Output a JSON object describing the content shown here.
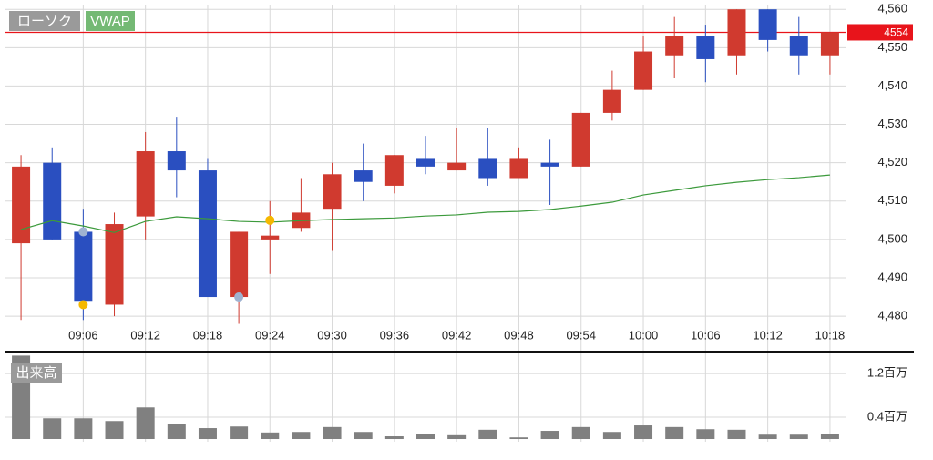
{
  "chart_data": [
    {
      "type": "candlestick",
      "categories": [
        null,
        null,
        "09:06",
        null,
        "09:12",
        null,
        "09:18",
        null,
        "09:24",
        null,
        "09:30",
        null,
        "09:36",
        null,
        "09:42",
        null,
        "09:48",
        null,
        "09:54",
        null,
        "10:00",
        null,
        "10:06",
        null,
        "10:12",
        null,
        "10:18"
      ],
      "series": [
        {
          "name": "ローソク",
          "up_color": "#d03a2f",
          "down_color": "#2a4fc0",
          "open": [
            4499,
            4520,
            4502,
            4483,
            4506,
            4523,
            4518,
            4485,
            4500,
            4503,
            4508,
            4518,
            4514,
            4521,
            4518,
            4521,
            4516,
            4520,
            4519,
            4533,
            4539,
            4548,
            4553,
            4548,
            4560,
            4553,
            4548
          ],
          "high": [
            4522,
            4524,
            4508,
            4507,
            4528,
            4532,
            4521,
            4502,
            4510,
            4516,
            4520,
            4525,
            4522,
            4527,
            4529,
            4529,
            4524,
            4526,
            4533,
            4544,
            4553,
            4558,
            4556,
            4560,
            4560,
            4558,
            4554
          ],
          "low": [
            4479,
            4500,
            4479,
            4480,
            4500,
            4511,
            4485,
            4478,
            4491,
            4502,
            4497,
            4510,
            4512,
            4517,
            4518,
            4514,
            4516,
            4509,
            4519,
            4531,
            4539,
            4542,
            4541,
            4543,
            4549,
            4543,
            4543
          ],
          "close": [
            4519,
            4500,
            4484,
            4504,
            4523,
            4518,
            4485,
            4502,
            4501,
            4507,
            4517,
            4515,
            4522,
            4519,
            4520,
            4516,
            4521,
            4519,
            4533,
            4539,
            4549,
            4553,
            4547,
            4560,
            4552,
            4548,
            4554
          ]
        }
      ],
      "line": {
        "name": "VWAP",
        "color": "#3c9a3c",
        "values": [
          4502.6,
          4504.9,
          4503.5,
          4501.8,
          4504.7,
          4505.9,
          4505.4,
          4504.7,
          4504.5,
          4504.9,
          4505.2,
          4505.4,
          4505.6,
          4506.1,
          4506.4,
          4507.1,
          4507.3,
          4507.8,
          4508.7,
          4509.7,
          4511.6,
          4512.8,
          4514.0,
          4514.9,
          4515.6,
          4516.1,
          4516.8
        ]
      },
      "markers": [
        {
          "color": "#f5b800",
          "values": [
            null,
            null,
            4483,
            null,
            null,
            null,
            null,
            null,
            4505,
            null,
            null,
            null,
            null,
            null,
            null,
            null,
            null,
            null,
            null,
            null,
            null,
            null,
            null,
            null,
            null,
            null,
            null
          ]
        },
        {
          "color": "#9fb3d1",
          "values": [
            null,
            null,
            4502,
            null,
            null,
            null,
            null,
            4485,
            null,
            null,
            null,
            null,
            null,
            null,
            null,
            null,
            null,
            null,
            null,
            null,
            null,
            null,
            null,
            null,
            null,
            null,
            null
          ]
        }
      ],
      "current_price": {
        "value": 4554,
        "color": "#e8141b"
      },
      "ylim": [
        4471,
        4561
      ],
      "yticks": [
        {
          "value": 4480,
          "label": "4,480"
        },
        {
          "value": 4490,
          "label": "4,490"
        },
        {
          "value": 4500,
          "label": "4,500"
        },
        {
          "value": 4510,
          "label": "4,510"
        },
        {
          "value": 4520,
          "label": "4,520"
        },
        {
          "value": 4530,
          "label": "4,530"
        },
        {
          "value": 4540,
          "label": "4,540"
        },
        {
          "value": 4550,
          "label": "4,550"
        },
        {
          "value": 4560,
          "label": "4,560"
        }
      ],
      "grid": true
    },
    {
      "type": "bar",
      "title": "出来高",
      "color": "#808080",
      "values": [
        1.53,
        0.38,
        0.38,
        0.33,
        0.58,
        0.27,
        0.2,
        0.23,
        0.12,
        0.13,
        0.22,
        0.13,
        0.05,
        0.1,
        0.07,
        0.17,
        0.03,
        0.15,
        0.22,
        0.13,
        0.25,
        0.22,
        0.18,
        0.17,
        0.08,
        0.08,
        0.1
      ],
      "ylim": [
        -0.05,
        1.57
      ],
      "yticks": [
        {
          "value": 0.4,
          "label": "0.4百万"
        },
        {
          "value": 1.2,
          "label": "1.2百万"
        }
      ],
      "grid": true
    }
  ]
}
